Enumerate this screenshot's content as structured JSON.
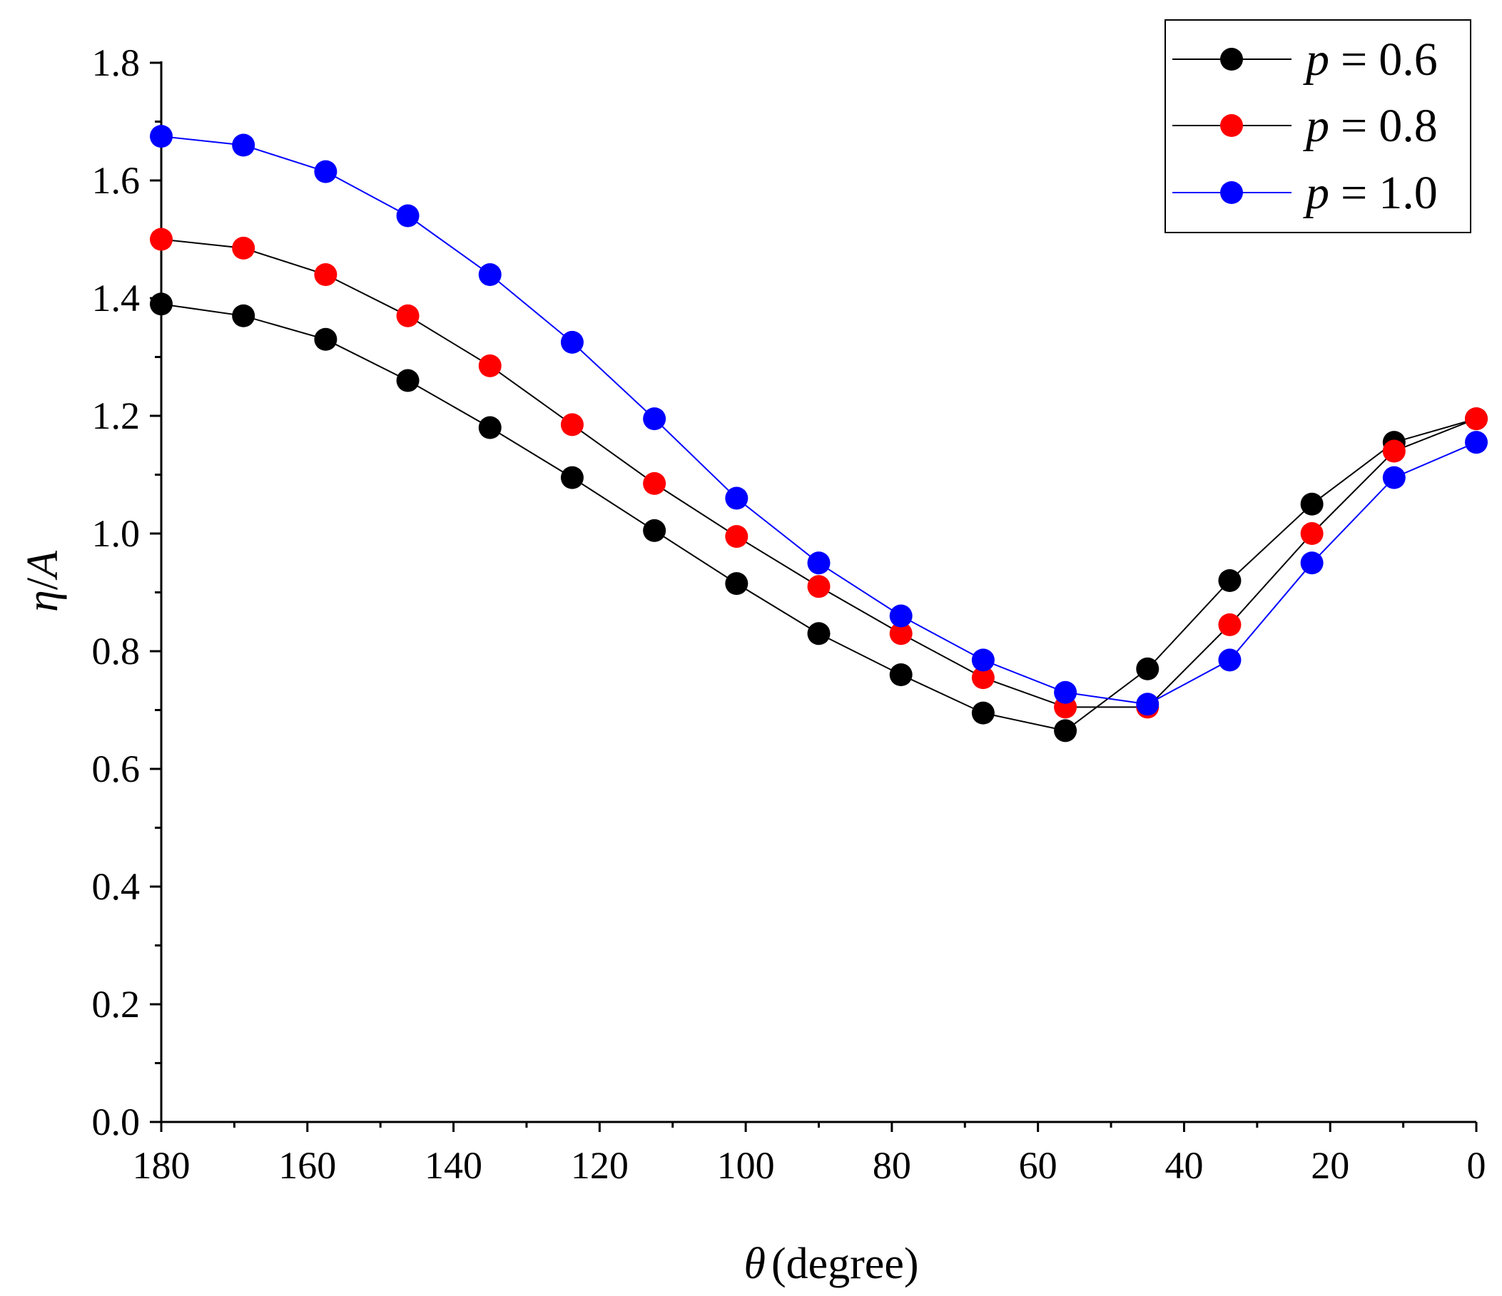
{
  "chart_data": {
    "type": "line",
    "title": "",
    "xlabel": {
      "symbol": "θ",
      "text": "(degree)"
    },
    "ylabel": {
      "symbol": "η",
      "slash": "/",
      "denom": "A"
    },
    "xlim": [
      180,
      0
    ],
    "ylim": [
      0,
      1.8
    ],
    "x_ticks": [
      "180",
      "160",
      "140",
      "120",
      "100",
      "80",
      "60",
      "40",
      "20",
      "0"
    ],
    "y_ticks": [
      "0.0",
      "0.2",
      "0.4",
      "0.6",
      "0.8",
      "1.0",
      "1.2",
      "1.4",
      "1.6",
      "1.8"
    ],
    "x_tick_values": [
      180,
      160,
      140,
      120,
      100,
      80,
      60,
      40,
      20,
      0
    ],
    "y_tick_values": [
      0,
      0.2,
      0.4,
      0.6,
      0.8,
      1.0,
      1.2,
      1.4,
      1.6,
      1.8
    ],
    "legend_position": "top-right",
    "x": [
      180,
      168.75,
      157.5,
      146.25,
      135,
      123.75,
      112.5,
      101.25,
      90,
      78.75,
      67.5,
      56.25,
      45,
      33.75,
      22.5,
      11.25,
      0
    ],
    "series": [
      {
        "name": "p = 0.6",
        "var": "p",
        "eq": "=",
        "val": "0.6",
        "marker_color": "#000000",
        "line_color": "#000000",
        "values": [
          1.39,
          1.37,
          1.33,
          1.26,
          1.18,
          1.095,
          1.005,
          0.915,
          0.83,
          0.76,
          0.695,
          0.665,
          0.77,
          0.92,
          1.05,
          1.155,
          1.195
        ]
      },
      {
        "name": "p = 0.8",
        "var": "p",
        "eq": "=",
        "val": "0.8",
        "marker_color": "#ff0000",
        "line_color": "#000000",
        "values": [
          1.5,
          1.485,
          1.44,
          1.37,
          1.285,
          1.185,
          1.085,
          0.995,
          0.91,
          0.83,
          0.755,
          0.705,
          0.705,
          0.845,
          1.0,
          1.14,
          1.195
        ]
      },
      {
        "name": "p = 1.0",
        "var": "p",
        "eq": "=",
        "val": "1.0",
        "marker_color": "#0000ff",
        "line_color": "#0000ff",
        "values": [
          1.675,
          1.66,
          1.615,
          1.54,
          1.44,
          1.325,
          1.195,
          1.06,
          0.95,
          0.86,
          0.785,
          0.73,
          0.71,
          0.785,
          0.95,
          1.095,
          1.155
        ]
      }
    ]
  }
}
